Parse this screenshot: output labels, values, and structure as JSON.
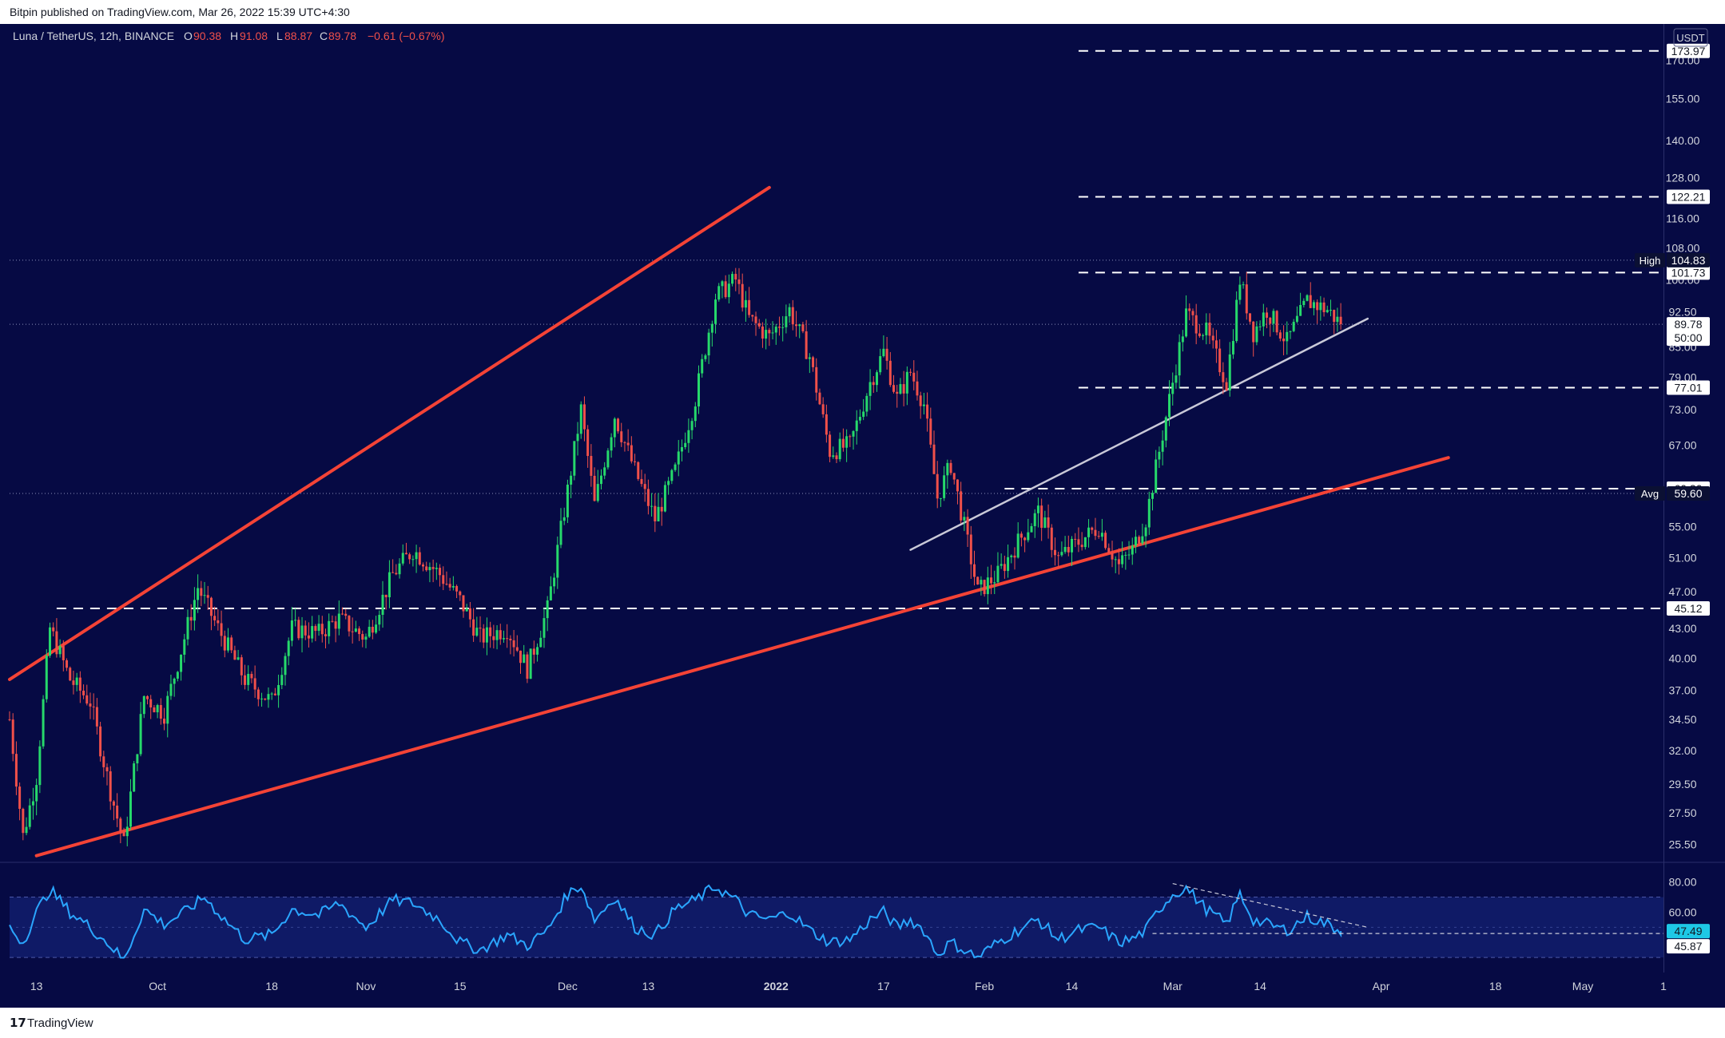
{
  "attribution": "Bitpin published on TradingView.com, Mar 26, 2022 15:39 UTC+4:30",
  "footer": {
    "logo_mark": "𝟭𝟳",
    "logo_text": "TradingView"
  },
  "colors": {
    "background": "#060a44",
    "rsi_band": "#0f1a66",
    "up": "#26d96b",
    "down": "#f0504a",
    "wedge": "#f44336",
    "support_line": "#c9c9d8",
    "level_line": "#ffffff",
    "rsi_line": "#2aa6ff",
    "axis_text": "#d1d4dc",
    "rsi_tag": "#1ec8e6"
  },
  "chart_data": {
    "type": "candlestick",
    "header": {
      "symbol": "Luna / TetherUS, 12h, BINANCE",
      "o_label": "O",
      "o": "90.38",
      "h_label": "H",
      "h": "91.08",
      "l_label": "L",
      "l": "88.87",
      "c_label": "C",
      "c": "89.78",
      "change": "−0.61 (−0.67%)"
    },
    "currency": "USDT",
    "y_scale": "log",
    "ylim": [
      24.5,
      185
    ],
    "x_range": [
      "2021-09-09",
      "2022-05-13"
    ],
    "y_ticks": [
      "25.50",
      "27.50",
      "29.50",
      "32.00",
      "34.50",
      "37.00",
      "40.00",
      "43.00",
      "47.00",
      "51.00",
      "55.00",
      "60.00",
      "67.00",
      "73.00",
      "79.00",
      "85.00",
      "92.50",
      "100.00",
      "108.00",
      "116.00",
      "128.00",
      "140.00",
      "155.00",
      "170.00"
    ],
    "x_ticks": [
      {
        "label": "13",
        "date": "2021-09-13",
        "bold": false
      },
      {
        "label": "Oct",
        "date": "2021-10-01",
        "bold": false
      },
      {
        "label": "18",
        "date": "2021-10-18",
        "bold": false
      },
      {
        "label": "Nov",
        "date": "2021-11-01",
        "bold": false
      },
      {
        "label": "15",
        "date": "2021-11-15",
        "bold": false
      },
      {
        "label": "Dec",
        "date": "2021-12-01",
        "bold": false
      },
      {
        "label": "13",
        "date": "2021-12-13",
        "bold": false
      },
      {
        "label": "2022",
        "date": "2022-01-01",
        "bold": true
      },
      {
        "label": "17",
        "date": "2022-01-17",
        "bold": false
      },
      {
        "label": "Feb",
        "date": "2022-02-01",
        "bold": false
      },
      {
        "label": "14",
        "date": "2022-02-14",
        "bold": false
      },
      {
        "label": "Mar",
        "date": "2022-03-01",
        "bold": false
      },
      {
        "label": "14",
        "date": "2022-03-14",
        "bold": false
      },
      {
        "label": "Apr",
        "date": "2022-04-01",
        "bold": false
      },
      {
        "label": "18",
        "date": "2022-04-18",
        "bold": false
      },
      {
        "label": "May",
        "date": "2022-05-01",
        "bold": false
      },
      {
        "label": "1",
        "date": "2022-05-13",
        "bold": false
      }
    ],
    "price_path": [
      [
        "2021-09-09",
        34.5
      ],
      [
        "2021-09-11",
        26.0
      ],
      [
        "2021-09-13",
        30.0
      ],
      [
        "2021-09-15",
        43.0
      ],
      [
        "2021-09-18",
        38.0
      ],
      [
        "2021-09-21",
        36.0
      ],
      [
        "2021-09-24",
        29.0
      ],
      [
        "2021-09-26",
        25.5
      ],
      [
        "2021-09-29",
        36.5
      ],
      [
        "2021-10-02",
        35.0
      ],
      [
        "2021-10-05",
        42.0
      ],
      [
        "2021-10-07",
        47.5
      ],
      [
        "2021-10-10",
        43.0
      ],
      [
        "2021-10-14",
        38.0
      ],
      [
        "2021-10-18",
        36.0
      ],
      [
        "2021-10-21",
        43.0
      ],
      [
        "2021-10-25",
        42.5
      ],
      [
        "2021-10-28",
        44.0
      ],
      [
        "2021-11-01",
        42.0
      ],
      [
        "2021-11-05",
        49.0
      ],
      [
        "2021-11-08",
        52.0
      ],
      [
        "2021-11-12",
        49.0
      ],
      [
        "2021-11-15",
        46.0
      ],
      [
        "2021-11-18",
        42.0
      ],
      [
        "2021-11-22",
        43.0
      ],
      [
        "2021-11-25",
        39.0
      ],
      [
        "2021-11-28",
        45.0
      ],
      [
        "2021-12-01",
        60.0
      ],
      [
        "2021-12-03",
        73.0
      ],
      [
        "2021-12-05",
        58.0
      ],
      [
        "2021-12-08",
        72.0
      ],
      [
        "2021-12-11",
        63.0
      ],
      [
        "2021-12-14",
        56.0
      ],
      [
        "2021-12-17",
        63.0
      ],
      [
        "2021-12-20",
        75.0
      ],
      [
        "2021-12-23",
        96.0
      ],
      [
        "2021-12-26",
        100.0
      ],
      [
        "2021-12-28",
        91.0
      ],
      [
        "2021-12-31",
        87.0
      ],
      [
        "2022-01-03",
        93.0
      ],
      [
        "2022-01-06",
        83.0
      ],
      [
        "2022-01-09",
        66.0
      ],
      [
        "2022-01-12",
        67.0
      ],
      [
        "2022-01-15",
        78.0
      ],
      [
        "2022-01-17",
        84.0
      ],
      [
        "2022-01-19",
        75.0
      ],
      [
        "2022-01-21",
        80.0
      ],
      [
        "2022-01-23",
        74.0
      ],
      [
        "2022-01-25",
        59.0
      ],
      [
        "2022-01-27",
        64.0
      ],
      [
        "2022-01-29",
        55.0
      ],
      [
        "2022-01-31",
        47.0
      ],
      [
        "2022-02-03",
        49.0
      ],
      [
        "2022-02-06",
        53.0
      ],
      [
        "2022-02-09",
        57.0
      ],
      [
        "2022-02-12",
        51.0
      ],
      [
        "2022-02-15",
        53.0
      ],
      [
        "2022-02-18",
        55.0
      ],
      [
        "2022-02-21",
        50.0
      ],
      [
        "2022-02-23",
        52.0
      ],
      [
        "2022-02-25",
        56.0
      ],
      [
        "2022-02-27",
        66.0
      ],
      [
        "2022-03-01",
        78.0
      ],
      [
        "2022-03-03",
        92.0
      ],
      [
        "2022-03-06",
        88.0
      ],
      [
        "2022-03-09",
        78.0
      ],
      [
        "2022-03-11",
        100.0
      ],
      [
        "2022-03-13",
        88.0
      ],
      [
        "2022-03-15",
        93.0
      ],
      [
        "2022-03-18",
        86.0
      ],
      [
        "2022-03-21",
        95.0
      ],
      [
        "2022-03-24",
        93.0
      ],
      [
        "2022-03-26",
        89.78
      ]
    ],
    "levels": [
      {
        "value": 173.97,
        "label": "173.97",
        "x_start": "2022-02-15"
      },
      {
        "value": 122.21,
        "label": "122.21",
        "x_start": "2022-02-15"
      },
      {
        "value": 101.73,
        "label": "101.73",
        "x_start": "2022-02-15"
      },
      {
        "value": 77.01,
        "label": "77.01",
        "x_start": "2022-02-15"
      },
      {
        "value": 60.3,
        "label": "60.30",
        "x_start": "2022-02-04"
      },
      {
        "value": 45.12,
        "label": "45.12",
        "x_start": "2021-09-16"
      }
    ],
    "dotted_lines": [
      {
        "value": 104.83,
        "tag": "High",
        "label": "104.83"
      },
      {
        "value": 89.78,
        "label": "89.78",
        "countdown": "50:00"
      },
      {
        "value": 59.6,
        "tag": "Avg",
        "label": "59.60"
      }
    ],
    "trendlines": [
      {
        "name": "wedge-upper",
        "from": [
          "2021-09-09",
          38.0
        ],
        "to": [
          "2021-12-31",
          125.0
        ]
      },
      {
        "name": "wedge-lower",
        "from": [
          "2021-09-13",
          24.8
        ],
        "to": [
          "2022-04-11",
          65.0
        ]
      },
      {
        "name": "support",
        "from": [
          "2022-01-21",
          52.0
        ],
        "to": [
          "2022-03-30",
          91.0
        ]
      }
    ],
    "rsi": {
      "ylim": [
        20,
        92
      ],
      "band": [
        30,
        70
      ],
      "ticks": [
        "80.00",
        "60.00"
      ],
      "value_tags": [
        {
          "value": 47.49,
          "label": "47.49"
        },
        {
          "value": 45.87,
          "label": "45.87"
        }
      ],
      "path": [
        [
          "2021-09-09",
          50
        ],
        [
          "2021-09-11",
          40
        ],
        [
          "2021-09-13",
          60
        ],
        [
          "2021-09-15",
          75
        ],
        [
          "2021-09-18",
          60
        ],
        [
          "2021-09-21",
          50
        ],
        [
          "2021-09-24",
          38
        ],
        [
          "2021-09-26",
          28
        ],
        [
          "2021-09-29",
          62
        ],
        [
          "2021-10-02",
          52
        ],
        [
          "2021-10-05",
          60
        ],
        [
          "2021-10-08",
          70
        ],
        [
          "2021-10-11",
          55
        ],
        [
          "2021-10-14",
          42
        ],
        [
          "2021-10-18",
          45
        ],
        [
          "2021-10-21",
          62
        ],
        [
          "2021-10-25",
          58
        ],
        [
          "2021-10-28",
          66
        ],
        [
          "2021-11-01",
          50
        ],
        [
          "2021-11-05",
          68
        ],
        [
          "2021-11-08",
          66
        ],
        [
          "2021-11-12",
          55
        ],
        [
          "2021-11-15",
          40
        ],
        [
          "2021-11-18",
          35
        ],
        [
          "2021-11-22",
          45
        ],
        [
          "2021-11-25",
          38
        ],
        [
          "2021-11-28",
          48
        ],
        [
          "2021-12-01",
          72
        ],
        [
          "2021-12-03",
          78
        ],
        [
          "2021-12-05",
          55
        ],
        [
          "2021-12-08",
          70
        ],
        [
          "2021-12-11",
          50
        ],
        [
          "2021-12-14",
          45
        ],
        [
          "2021-12-17",
          62
        ],
        [
          "2021-12-20",
          68
        ],
        [
          "2021-12-23",
          77
        ],
        [
          "2021-12-26",
          68
        ],
        [
          "2021-12-28",
          58
        ],
        [
          "2021-12-31",
          55
        ],
        [
          "2022-01-03",
          60
        ],
        [
          "2022-01-06",
          48
        ],
        [
          "2022-01-09",
          40
        ],
        [
          "2022-01-12",
          42
        ],
        [
          "2022-01-15",
          55
        ],
        [
          "2022-01-17",
          60
        ],
        [
          "2022-01-19",
          50
        ],
        [
          "2022-01-21",
          55
        ],
        [
          "2022-01-23",
          48
        ],
        [
          "2022-01-25",
          32
        ],
        [
          "2022-01-27",
          40
        ],
        [
          "2022-01-29",
          35
        ],
        [
          "2022-01-31",
          30
        ],
        [
          "2022-02-03",
          40
        ],
        [
          "2022-02-06",
          48
        ],
        [
          "2022-02-09",
          55
        ],
        [
          "2022-02-12",
          42
        ],
        [
          "2022-02-15",
          48
        ],
        [
          "2022-02-18",
          50
        ],
        [
          "2022-02-21",
          40
        ],
        [
          "2022-02-23",
          42
        ],
        [
          "2022-02-25",
          48
        ],
        [
          "2022-02-27",
          62
        ],
        [
          "2022-03-01",
          72
        ],
        [
          "2022-03-03",
          76
        ],
        [
          "2022-03-06",
          62
        ],
        [
          "2022-03-09",
          52
        ],
        [
          "2022-03-11",
          72
        ],
        [
          "2022-03-13",
          55
        ],
        [
          "2022-03-15",
          52
        ],
        [
          "2022-03-18",
          48
        ],
        [
          "2022-03-21",
          57
        ],
        [
          "2022-03-24",
          52
        ],
        [
          "2022-03-26",
          47.49
        ]
      ],
      "annotations": [
        {
          "name": "rsi-divergence-line",
          "from": [
            "2022-03-01",
            79
          ],
          "to": [
            "2022-03-30",
            50
          ]
        },
        {
          "name": "rsi-base-line",
          "from": [
            "2022-02-26",
            45.87
          ],
          "to": [
            "2022-05-13",
            45.87
          ]
        }
      ]
    }
  }
}
